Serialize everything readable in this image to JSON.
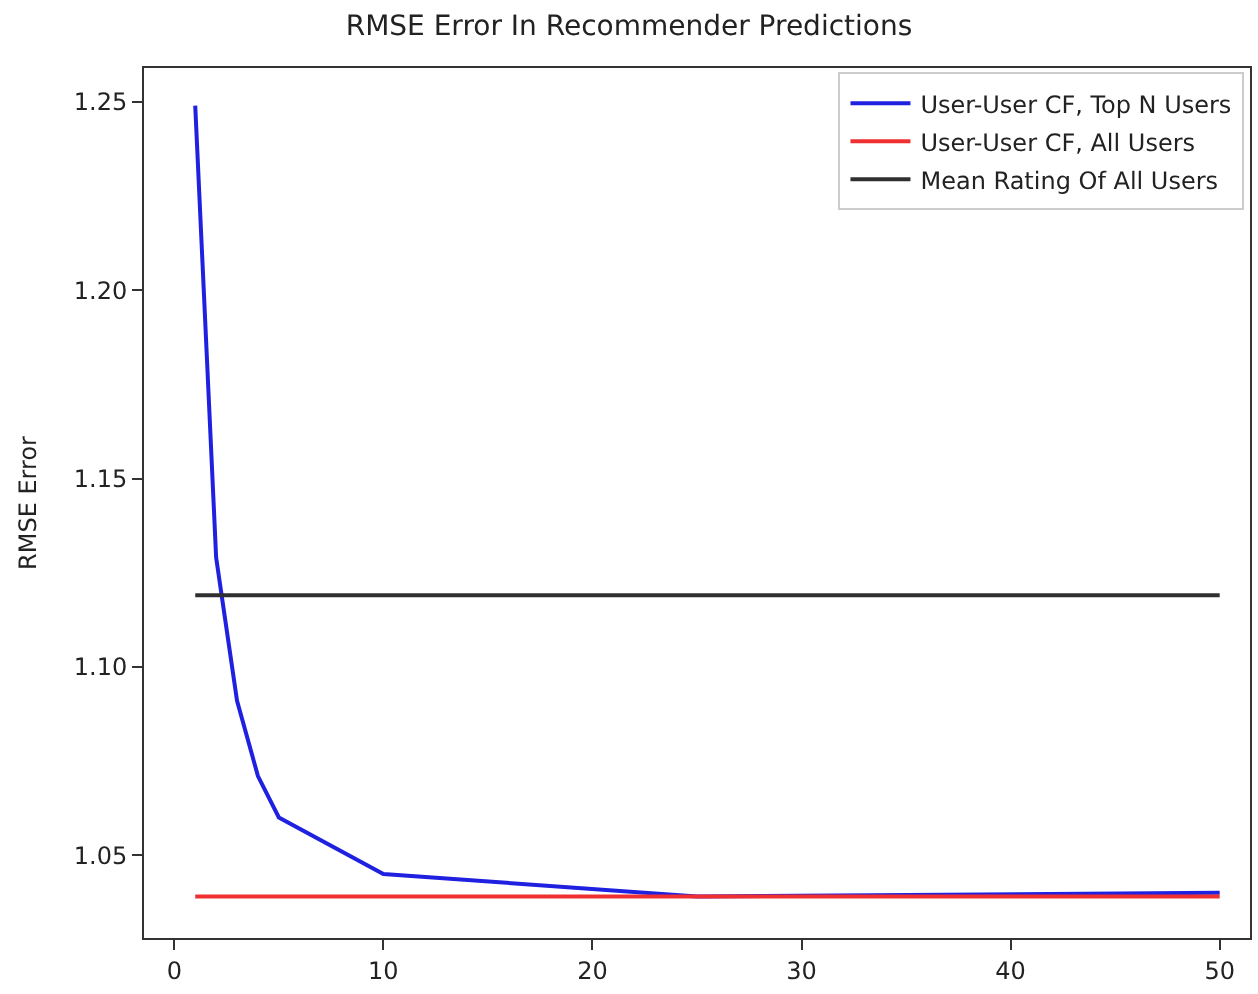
{
  "chart_data": {
    "type": "line",
    "title": "RMSE Error In Recommender Predictions",
    "ylabel": "RMSE Error",
    "xlim": [
      -1.45,
      51.45
    ],
    "xticks": [
      0,
      10,
      20,
      30,
      40,
      50
    ],
    "ylim": [
      1.028,
      1.259
    ],
    "yticks": [
      1.05,
      {
        "value": 1.1,
        "label": "1.10"
      },
      1.15,
      {
        "value": 1.2,
        "label": "1.20"
      },
      1.25
    ],
    "legend": "top right",
    "marker": "none",
    "line_style": "solid",
    "series": [
      {
        "name": "User-User CF, Top N Users",
        "color": "#2020e0",
        "x": [
          1,
          2,
          3,
          4,
          5,
          10,
          25,
          50
        ],
        "values": [
          1.249,
          1.129,
          1.091,
          1.071,
          1.06,
          1.045,
          1.039,
          1.04
        ]
      },
      {
        "name": "User-User CF, All Users",
        "color": "#f03030",
        "x": [
          1,
          50
        ],
        "values": [
          1.039,
          1.039
        ]
      },
      {
        "name": "Mean Rating Of All Users",
        "color": "#303030",
        "x": [
          1,
          50
        ],
        "values": [
          1.119,
          1.119
        ]
      }
    ]
  }
}
